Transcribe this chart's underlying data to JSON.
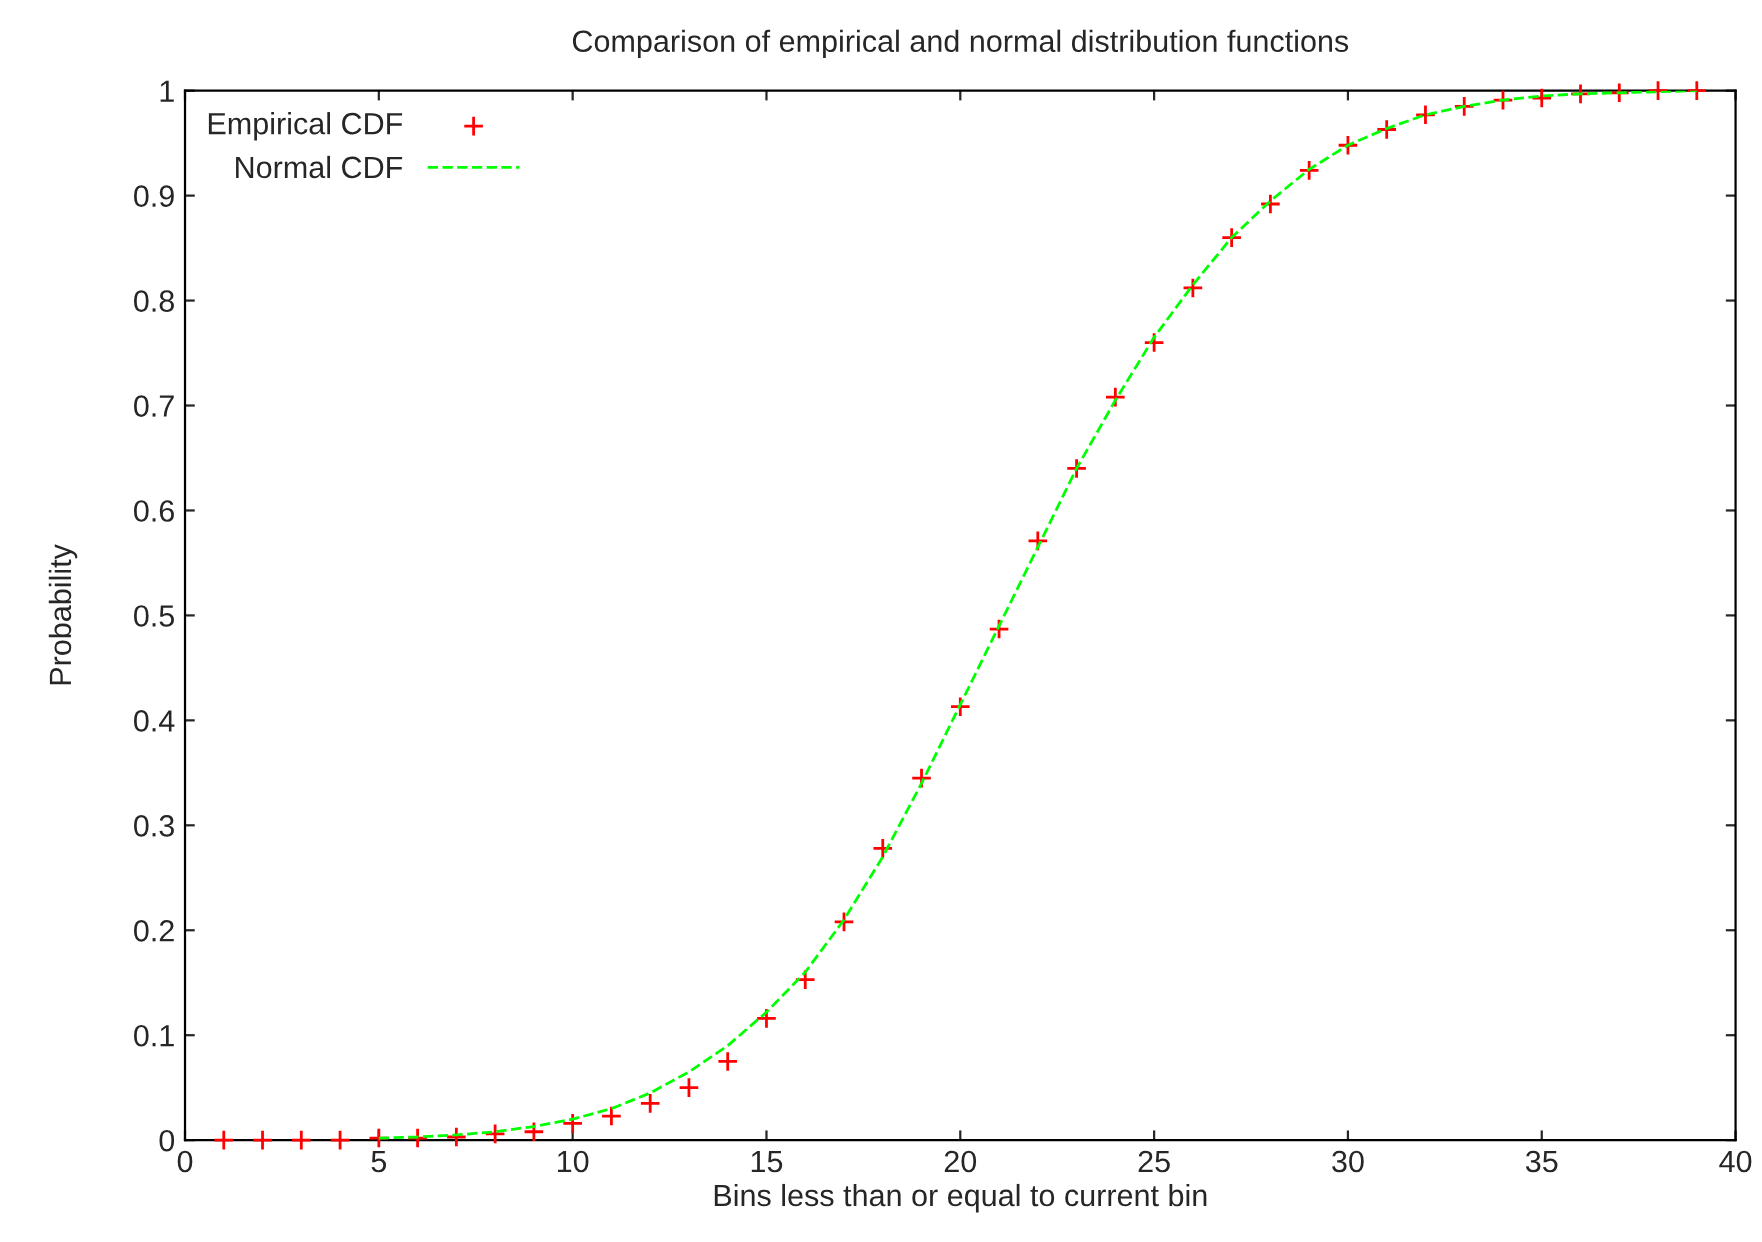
{
  "chart_data": {
    "type": "scatter",
    "title": "Comparison of empirical and normal distribution functions",
    "xlabel": "Bins less than or equal to current bin",
    "ylabel": "Probability",
    "xlim": [
      0,
      40
    ],
    "ylim": [
      0,
      1
    ],
    "xticks": [
      0,
      5,
      10,
      15,
      20,
      25,
      30,
      35,
      40
    ],
    "yticks": [
      0,
      0.1,
      0.2,
      0.3,
      0.4,
      0.5,
      0.6,
      0.7,
      0.8,
      0.9,
      1
    ],
    "legend": "top left",
    "grid": false,
    "series": [
      {
        "name": "Empirical CDF",
        "marker": "cross",
        "color": "#ff0000",
        "x": [
          1,
          2,
          3,
          4,
          5,
          6,
          7,
          8,
          9,
          10,
          11,
          12,
          13,
          14,
          15,
          16,
          17,
          18,
          19,
          20,
          21,
          22,
          23,
          24,
          25,
          26,
          27,
          28,
          29,
          30,
          31,
          32,
          33,
          34,
          35,
          36,
          37,
          38,
          39
        ],
        "values": [
          0,
          0,
          0,
          0,
          0.002,
          0.002,
          0.003,
          0.006,
          0.008,
          0.016,
          0.023,
          0.035,
          0.05,
          0.075,
          0.116,
          0.153,
          0.208,
          0.278,
          0.345,
          0.413,
          0.487,
          0.571,
          0.64,
          0.708,
          0.76,
          0.812,
          0.86,
          0.892,
          0.924,
          0.948,
          0.963,
          0.977,
          0.985,
          0.991,
          0.993,
          0.997,
          0.998,
          1,
          1
        ]
      },
      {
        "name": "Normal CDF",
        "type": "line",
        "line_style": "dashed",
        "marker": "none",
        "color": "#00ff00",
        "x": [
          5,
          6,
          7,
          8,
          9,
          10,
          11,
          12,
          13,
          14,
          15,
          16,
          17,
          18,
          19,
          20,
          21,
          22,
          23,
          24,
          25,
          26,
          27,
          28,
          29,
          30,
          31,
          32,
          33,
          34,
          35,
          36,
          37,
          38,
          39
        ],
        "values": [
          0.002,
          0.003,
          0.005,
          0.008,
          0.013,
          0.02,
          0.03,
          0.045,
          0.065,
          0.09,
          0.122,
          0.16,
          0.21,
          0.27,
          0.34,
          0.415,
          0.49,
          0.565,
          0.64,
          0.705,
          0.765,
          0.815,
          0.86,
          0.895,
          0.925,
          0.948,
          0.964,
          0.977,
          0.985,
          0.991,
          0.995,
          0.997,
          0.998,
          0.999,
          1
        ]
      }
    ]
  }
}
